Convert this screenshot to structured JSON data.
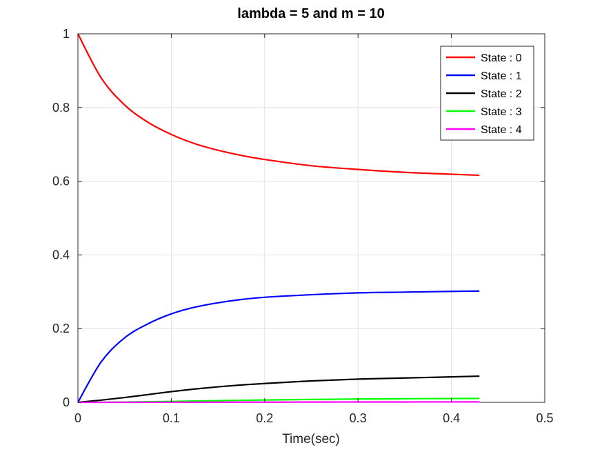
{
  "chart_data": {
    "type": "line",
    "title": "lambda =  5  and m =  10",
    "xlabel": "Time(sec)",
    "ylabel": "",
    "xlim": [
      0,
      0.5
    ],
    "ylim": [
      0,
      1
    ],
    "xticks": [
      "0",
      "0.1",
      "0.2",
      "0.3",
      "0.4",
      "0.5"
    ],
    "yticks": [
      "0",
      "0.2",
      "0.4",
      "0.6",
      "0.8",
      "1"
    ],
    "grid": true,
    "legend_position": "top-right",
    "x": [
      0,
      0.025,
      0.05,
      0.075,
      0.1,
      0.125,
      0.15,
      0.175,
      0.2,
      0.25,
      0.3,
      0.35,
      0.4,
      0.43
    ],
    "series": [
      {
        "name": "State : 0",
        "color": "#ff0000",
        "values": [
          1.0,
          0.88,
          0.807,
          0.76,
          0.727,
          0.702,
          0.684,
          0.67,
          0.659,
          0.642,
          0.632,
          0.624,
          0.619,
          0.616
        ]
      },
      {
        "name": "State : 1",
        "color": "#0000ff",
        "values": [
          0.0,
          0.11,
          0.175,
          0.213,
          0.24,
          0.258,
          0.27,
          0.279,
          0.285,
          0.292,
          0.297,
          0.299,
          0.301,
          0.302
        ]
      },
      {
        "name": "State : 2",
        "color": "#000000",
        "values": [
          0.0,
          0.006,
          0.013,
          0.021,
          0.029,
          0.036,
          0.042,
          0.047,
          0.051,
          0.058,
          0.063,
          0.066,
          0.069,
          0.071
        ]
      },
      {
        "name": "State : 3",
        "color": "#00ff00",
        "values": [
          0.0,
          0.0003,
          0.0008,
          0.0016,
          0.0025,
          0.0035,
          0.0045,
          0.0055,
          0.0063,
          0.0078,
          0.0089,
          0.0097,
          0.0103,
          0.0106
        ]
      },
      {
        "name": "State : 4",
        "color": "#ff00ff",
        "values": [
          0.0,
          0.0,
          3e-05,
          8e-05,
          0.00015,
          0.00022,
          0.0003,
          0.0004,
          0.0005,
          0.0007,
          0.0009,
          0.001,
          0.0011,
          0.0012
        ]
      }
    ]
  }
}
